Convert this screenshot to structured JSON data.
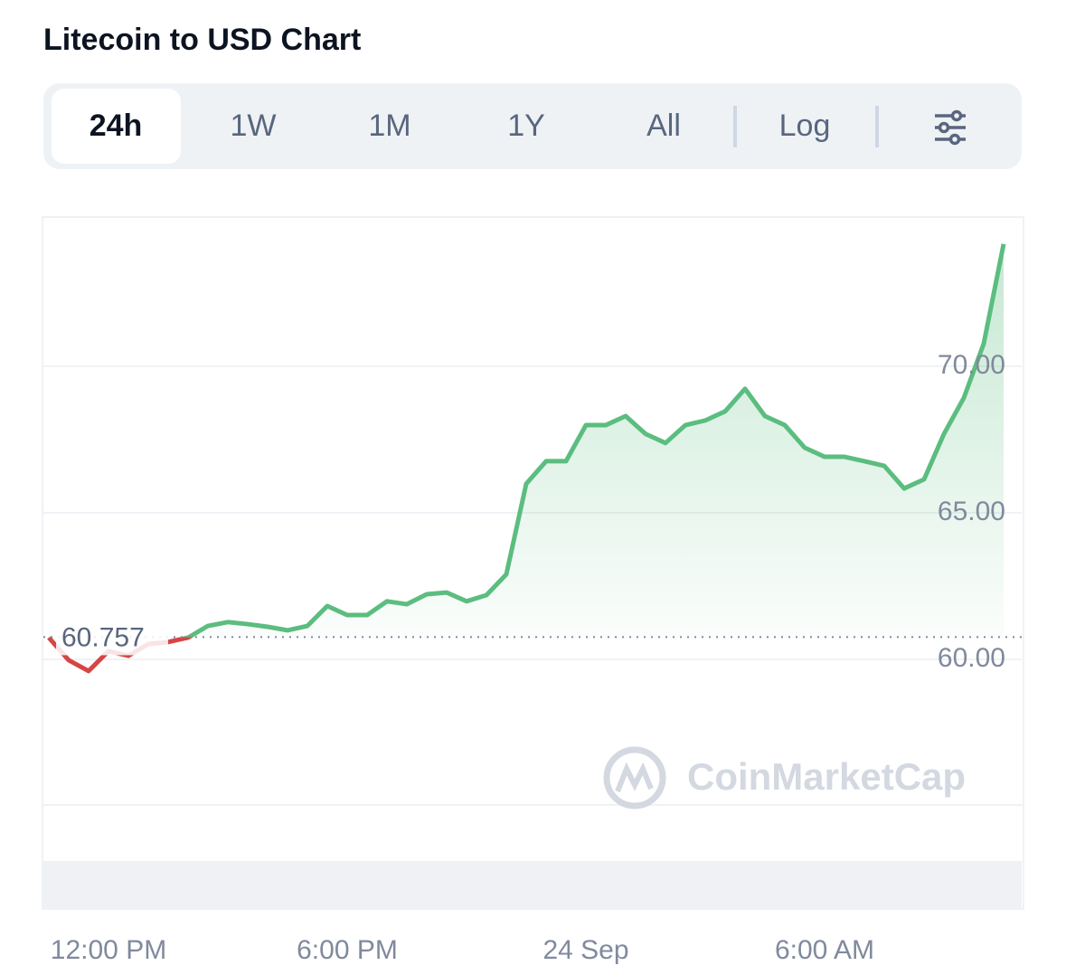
{
  "title": "Litecoin to USD Chart",
  "tabs": [
    "24h",
    "1W",
    "1M",
    "1Y",
    "All"
  ],
  "active_tab": "24h",
  "log_button": "Log",
  "watermark": "CoinMarketCap",
  "chart_data": {
    "type": "line",
    "categories": [
      null,
      null,
      null,
      "12:00 PM",
      null,
      null,
      null,
      null,
      null,
      null,
      null,
      null,
      null,
      null,
      null,
      "6:00 PM",
      null,
      null,
      null,
      null,
      null,
      null,
      null,
      null,
      null,
      null,
      null,
      "24 Sep",
      null,
      null,
      null,
      null,
      null,
      null,
      null,
      null,
      null,
      null,
      null,
      "6:00 AM",
      null,
      null,
      null,
      null,
      null,
      null,
      null,
      null,
      null
    ],
    "values": [
      60.74,
      59.97,
      59.6,
      60.28,
      60.12,
      60.52,
      60.59,
      60.74,
      61.14,
      61.27,
      61.2,
      61.11,
      60.99,
      61.14,
      61.82,
      61.51,
      61.51,
      61.98,
      61.88,
      62.22,
      62.28,
      61.98,
      62.19,
      62.9,
      65.99,
      66.76,
      66.76,
      67.99,
      67.99,
      68.3,
      67.69,
      67.38,
      67.99,
      68.15,
      68.46,
      69.23,
      68.3,
      67.99,
      67.22,
      66.91,
      66.91,
      66.76,
      66.6,
      65.83,
      66.14,
      67.69,
      68.92,
      70.77,
      74.17
    ],
    "color": "#5bbd7f",
    "below_color": "#d64545",
    "reference": {
      "value": 60.757,
      "label": "60.757"
    },
    "ylim": [
      55.03,
      75.09
    ],
    "yticks": [
      {
        "value": 60,
        "label": "60.00"
      },
      {
        "value": 65,
        "label": "65.00"
      },
      {
        "value": 70,
        "label": "70.00"
      }
    ],
    "grid": true
  }
}
